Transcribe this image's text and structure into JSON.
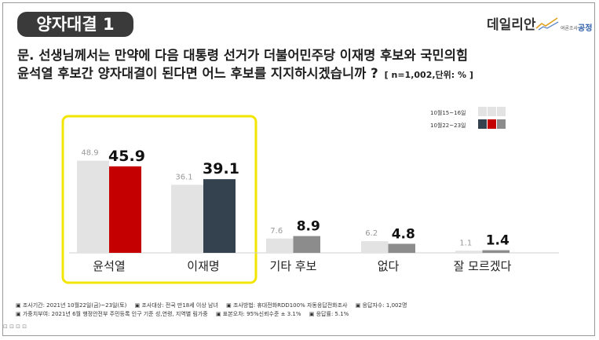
{
  "header": {
    "badge": "양자대결 1",
    "brand": "데일리안",
    "pollster_small": "여론조사",
    "pollster_name": "공정"
  },
  "question": {
    "line1": "문. 선생님께서는 만약에 다음 대통령 선거가 더불어민주당 이재명 후보와 국민의힘",
    "line2": "윤석열 후보간 양자대결이 된다면 어느 후보를 지지하시겠습니까 ?",
    "note": "[ n=1,002,단위: % ]"
  },
  "colors": {
    "prev_bar": "#e3e3e3",
    "yoon": "#c40000",
    "lee": "#34414f",
    "other": "#8c8c8c",
    "highlight": "#f2e600"
  },
  "chart_data": {
    "type": "bar",
    "categories": [
      "윤석열",
      "이재명",
      "기타 후보",
      "없다",
      "잘 모르겠다"
    ],
    "series": [
      {
        "name": "10월15~16일",
        "values": [
          48.9,
          36.1,
          7.6,
          6.2,
          1.1
        ]
      },
      {
        "name": "10월22~23일",
        "values": [
          45.9,
          39.1,
          8.9,
          4.8,
          1.4
        ]
      }
    ],
    "ylim": [
      0,
      55
    ],
    "legend_position": "top-right",
    "highlighted_categories": [
      "윤석열",
      "이재명"
    ]
  },
  "footer": {
    "line1": [
      "▣ 조사기간: 2021년 10월22일(금)~23일(토)",
      "▣ 조사대상: 전국 만18세 이상 남녀",
      "▣ 조사방법: 휴대전화RDD100% 자동응답전화조사",
      "▣ 응답자수: 1,002명"
    ],
    "line2": [
      "▣ 가중치부여: 2021년 6월 행정안전부 주민등록 인구 기준 성,연령, 지역별 림가중",
      "▣ 표본오차: 95%신뢰수준 ± 3.1%",
      "▣ 응답률: 5.1%"
    ]
  }
}
